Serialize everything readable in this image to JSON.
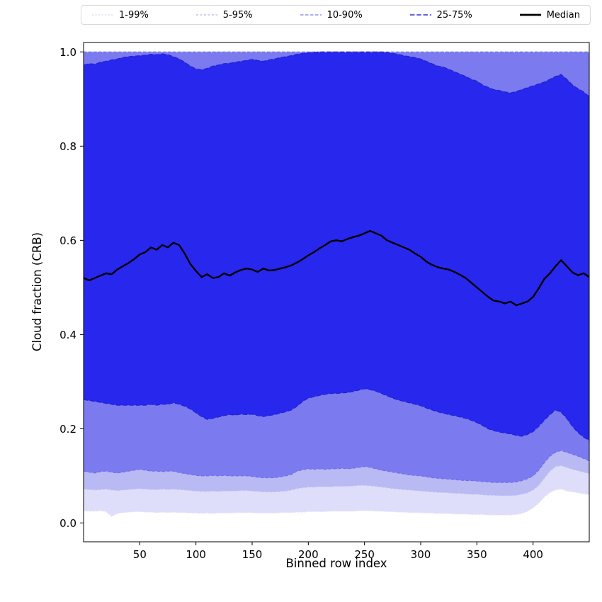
{
  "chart_data": {
    "type": "area",
    "title": "",
    "xlabel": "Binned row index",
    "ylabel": "Cloud fraction (CRB)",
    "xlim": [
      0,
      450
    ],
    "ylim": [
      -0.04,
      1.02
    ],
    "grid": false,
    "legend_position": "top",
    "x_ticks": [
      50,
      100,
      150,
      200,
      250,
      300,
      350,
      400
    ],
    "x_tick_labels": [
      "50",
      "100",
      "150",
      "200",
      "250",
      "300",
      "350",
      "400"
    ],
    "y_ticks": [
      0.0,
      0.2,
      0.4,
      0.6,
      0.8,
      1.0
    ],
    "y_tick_labels": [
      "0.0",
      "0.2",
      "0.4",
      "0.6",
      "0.8",
      "1.0"
    ],
    "x": [
      0,
      5,
      10,
      15,
      20,
      25,
      30,
      35,
      40,
      45,
      50,
      55,
      60,
      65,
      70,
      75,
      80,
      85,
      90,
      95,
      100,
      105,
      110,
      115,
      120,
      125,
      130,
      135,
      140,
      145,
      150,
      155,
      160,
      165,
      170,
      175,
      180,
      185,
      190,
      195,
      200,
      205,
      210,
      215,
      220,
      225,
      230,
      235,
      240,
      245,
      250,
      255,
      260,
      265,
      270,
      275,
      280,
      285,
      290,
      295,
      300,
      305,
      310,
      315,
      320,
      325,
      330,
      335,
      340,
      345,
      350,
      355,
      360,
      365,
      370,
      375,
      380,
      385,
      390,
      395,
      400,
      405,
      410,
      415,
      420,
      425,
      430,
      435,
      440,
      445,
      450
    ],
    "series": [
      {
        "name": "p1",
        "values": [
          0.026,
          0.025,
          0.025,
          0.026,
          0.024,
          0.014,
          0.02,
          0.022,
          0.023,
          0.024,
          0.024,
          0.023,
          0.023,
          0.022,
          0.023,
          0.022,
          0.023,
          0.022,
          0.022,
          0.021,
          0.021,
          0.02,
          0.021,
          0.02,
          0.021,
          0.021,
          0.021,
          0.022,
          0.022,
          0.022,
          0.022,
          0.021,
          0.021,
          0.021,
          0.021,
          0.022,
          0.022,
          0.022,
          0.023,
          0.023,
          0.024,
          0.024,
          0.024,
          0.024,
          0.025,
          0.025,
          0.025,
          0.025,
          0.025,
          0.026,
          0.026,
          0.026,
          0.025,
          0.025,
          0.024,
          0.024,
          0.023,
          0.023,
          0.022,
          0.022,
          0.022,
          0.021,
          0.021,
          0.02,
          0.02,
          0.02,
          0.019,
          0.019,
          0.019,
          0.018,
          0.018,
          0.018,
          0.017,
          0.017,
          0.017,
          0.017,
          0.017,
          0.018,
          0.02,
          0.025,
          0.032,
          0.042,
          0.055,
          0.065,
          0.07,
          0.072,
          0.068,
          0.066,
          0.064,
          0.062,
          0.06
        ]
      },
      {
        "name": "p5",
        "values": [
          0.072,
          0.071,
          0.07,
          0.071,
          0.072,
          0.07,
          0.069,
          0.07,
          0.071,
          0.072,
          0.073,
          0.072,
          0.071,
          0.071,
          0.072,
          0.071,
          0.072,
          0.071,
          0.07,
          0.069,
          0.068,
          0.067,
          0.067,
          0.068,
          0.067,
          0.068,
          0.068,
          0.068,
          0.069,
          0.069,
          0.068,
          0.067,
          0.066,
          0.066,
          0.066,
          0.067,
          0.068,
          0.07,
          0.073,
          0.075,
          0.076,
          0.076,
          0.077,
          0.077,
          0.077,
          0.078,
          0.078,
          0.078,
          0.079,
          0.08,
          0.08,
          0.079,
          0.078,
          0.076,
          0.075,
          0.073,
          0.072,
          0.071,
          0.07,
          0.069,
          0.068,
          0.067,
          0.066,
          0.065,
          0.065,
          0.064,
          0.063,
          0.063,
          0.062,
          0.061,
          0.061,
          0.06,
          0.059,
          0.059,
          0.058,
          0.058,
          0.058,
          0.059,
          0.061,
          0.064,
          0.07,
          0.08,
          0.095,
          0.11,
          0.12,
          0.122,
          0.118,
          0.114,
          0.111,
          0.108,
          0.105
        ]
      },
      {
        "name": "p10",
        "values": [
          0.11,
          0.108,
          0.106,
          0.109,
          0.11,
          0.108,
          0.106,
          0.108,
          0.11,
          0.112,
          0.114,
          0.112,
          0.11,
          0.11,
          0.109,
          0.11,
          0.11,
          0.107,
          0.105,
          0.103,
          0.101,
          0.1,
          0.1,
          0.101,
          0.1,
          0.101,
          0.1,
          0.1,
          0.1,
          0.1,
          0.099,
          0.097,
          0.096,
          0.096,
          0.096,
          0.098,
          0.1,
          0.103,
          0.11,
          0.113,
          0.115,
          0.114,
          0.115,
          0.114,
          0.115,
          0.115,
          0.116,
          0.115,
          0.116,
          0.118,
          0.12,
          0.118,
          0.115,
          0.112,
          0.11,
          0.108,
          0.106,
          0.104,
          0.102,
          0.101,
          0.1,
          0.098,
          0.096,
          0.095,
          0.094,
          0.093,
          0.092,
          0.091,
          0.09,
          0.09,
          0.089,
          0.088,
          0.087,
          0.086,
          0.086,
          0.086,
          0.086,
          0.087,
          0.09,
          0.094,
          0.1,
          0.112,
          0.128,
          0.142,
          0.15,
          0.154,
          0.15,
          0.146,
          0.142,
          0.137,
          0.132
        ]
      },
      {
        "name": "p25",
        "values": [
          0.262,
          0.26,
          0.258,
          0.256,
          0.254,
          0.252,
          0.25,
          0.25,
          0.25,
          0.25,
          0.25,
          0.25,
          0.252,
          0.25,
          0.252,
          0.252,
          0.255,
          0.252,
          0.248,
          0.242,
          0.234,
          0.226,
          0.22,
          0.222,
          0.225,
          0.228,
          0.23,
          0.229,
          0.231,
          0.23,
          0.231,
          0.228,
          0.226,
          0.228,
          0.23,
          0.233,
          0.236,
          0.24,
          0.248,
          0.258,
          0.265,
          0.268,
          0.271,
          0.273,
          0.275,
          0.275,
          0.276,
          0.277,
          0.279,
          0.282,
          0.285,
          0.283,
          0.28,
          0.275,
          0.27,
          0.265,
          0.261,
          0.258,
          0.255,
          0.252,
          0.249,
          0.244,
          0.24,
          0.236,
          0.233,
          0.23,
          0.228,
          0.225,
          0.222,
          0.218,
          0.213,
          0.207,
          0.2,
          0.196,
          0.193,
          0.191,
          0.189,
          0.186,
          0.184,
          0.188,
          0.194,
          0.205,
          0.218,
          0.23,
          0.24,
          0.235,
          0.222,
          0.205,
          0.192,
          0.182,
          0.175
        ]
      },
      {
        "name": "median",
        "values": [
          0.52,
          0.515,
          0.52,
          0.525,
          0.53,
          0.528,
          0.538,
          0.545,
          0.552,
          0.56,
          0.57,
          0.575,
          0.585,
          0.58,
          0.59,
          0.585,
          0.595,
          0.59,
          0.572,
          0.55,
          0.535,
          0.522,
          0.528,
          0.52,
          0.522,
          0.53,
          0.525,
          0.532,
          0.537,
          0.54,
          0.538,
          0.533,
          0.54,
          0.536,
          0.537,
          0.54,
          0.543,
          0.547,
          0.553,
          0.56,
          0.568,
          0.575,
          0.583,
          0.59,
          0.598,
          0.6,
          0.598,
          0.603,
          0.607,
          0.61,
          0.615,
          0.62,
          0.615,
          0.61,
          0.6,
          0.595,
          0.59,
          0.585,
          0.58,
          0.572,
          0.565,
          0.555,
          0.548,
          0.543,
          0.54,
          0.538,
          0.533,
          0.527,
          0.52,
          0.51,
          0.5,
          0.49,
          0.48,
          0.472,
          0.47,
          0.466,
          0.47,
          0.462,
          0.466,
          0.47,
          0.48,
          0.498,
          0.518,
          0.53,
          0.545,
          0.558,
          0.545,
          0.532,
          0.526,
          0.53,
          0.522
        ]
      },
      {
        "name": "p75",
        "values": [
          0.972,
          0.975,
          0.974,
          0.978,
          0.98,
          0.983,
          0.985,
          0.988,
          0.99,
          0.991,
          0.992,
          0.993,
          0.995,
          0.994,
          0.996,
          0.994,
          0.99,
          0.985,
          0.978,
          0.97,
          0.964,
          0.962,
          0.965,
          0.97,
          0.972,
          0.975,
          0.976,
          0.978,
          0.98,
          0.982,
          0.984,
          0.982,
          0.98,
          0.983,
          0.985,
          0.988,
          0.99,
          0.992,
          0.995,
          0.997,
          0.998,
          0.999,
          1.0,
          1.0,
          1.0,
          1.0,
          1.0,
          1.0,
          1.0,
          1.0,
          1.0,
          1.0,
          1.0,
          1.0,
          0.999,
          0.997,
          0.995,
          0.992,
          0.99,
          0.988,
          0.985,
          0.98,
          0.975,
          0.97,
          0.968,
          0.963,
          0.958,
          0.953,
          0.948,
          0.942,
          0.938,
          0.93,
          0.925,
          0.92,
          0.918,
          0.915,
          0.913,
          0.916,
          0.92,
          0.924,
          0.928,
          0.932,
          0.936,
          0.942,
          0.948,
          0.952,
          0.942,
          0.93,
          0.922,
          0.915,
          0.905
        ]
      },
      {
        "name": "p90",
        "const": 1.0
      },
      {
        "name": "p95",
        "const": 1.0
      },
      {
        "name": "p99",
        "const": 1.0
      }
    ],
    "bands": [
      {
        "label": "1-99%",
        "lower": "p1",
        "upper": "p99",
        "fill": "#dedefa",
        "edge": "#e2e2fa",
        "dash": "2 2.5"
      },
      {
        "label": "5-95%",
        "lower": "p5",
        "upper": "p95",
        "fill": "#b9b9f4",
        "edge": "#c0c0f4",
        "dash": "3 2.5"
      },
      {
        "label": "10-90%",
        "lower": "p10",
        "upper": "p90",
        "fill": "#7b7bef",
        "edge": "#6e6ef2",
        "dash": "4.5 2.5"
      },
      {
        "label": "25-75%",
        "lower": "p25",
        "upper": "p75",
        "fill": "#2727ee",
        "edge": "#2222cf",
        "dash": "6.5 2.8"
      }
    ],
    "median_color": "#000000",
    "legend": [
      {
        "label": "1-99%",
        "color": "#d4d4f0",
        "dash": "2 2.5",
        "width": 1.2
      },
      {
        "label": "5-95%",
        "color": "#b4b4ee",
        "dash": "3 2.5",
        "width": 1.2
      },
      {
        "label": "10-90%",
        "color": "#7d7df2",
        "dash": "4.5 2.5",
        "width": 1.3
      },
      {
        "label": "25-75%",
        "color": "#3434d6",
        "dash": "6.5 2.8",
        "width": 1.6
      },
      {
        "label": "Median",
        "color": "#000000",
        "dash": "",
        "width": 2.8
      }
    ]
  }
}
